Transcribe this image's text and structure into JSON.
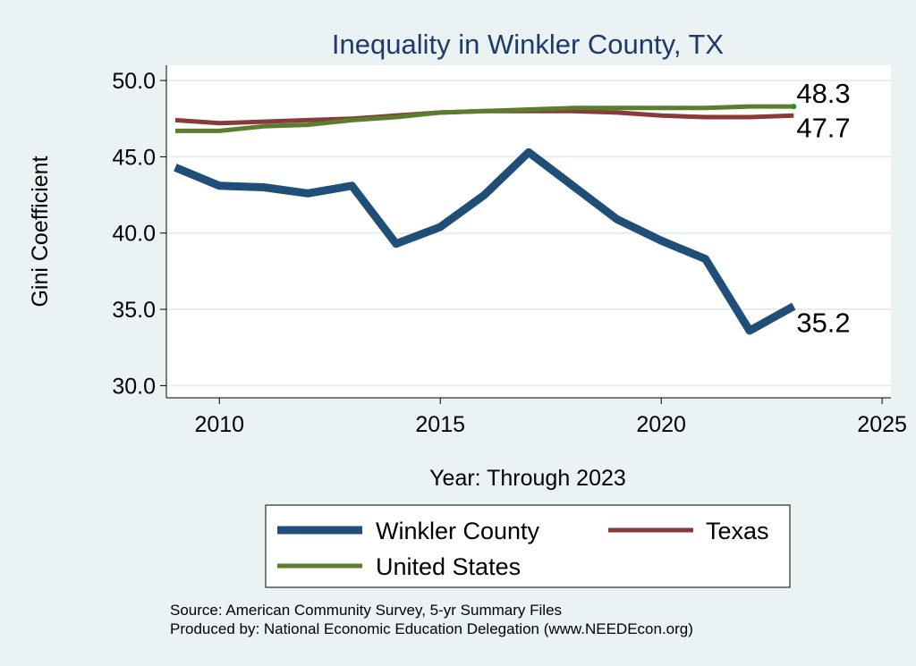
{
  "chart_data": {
    "type": "line",
    "title": "Inequality in Winkler County, TX",
    "xlabel": "Year: Through 2023",
    "ylabel": "Gini Coefficient",
    "xlim": [
      2008.8,
      2025.2
    ],
    "ylim": [
      29.2,
      51.0
    ],
    "x_ticks": [
      2010,
      2015,
      2020,
      2025
    ],
    "x_tick_labels": [
      "2010",
      "2015",
      "2020",
      "2025"
    ],
    "y_ticks": [
      30,
      35,
      40,
      45,
      50
    ],
    "y_tick_labels": [
      "30.0",
      "35.0",
      "40.0",
      "45.0",
      "50.0"
    ],
    "grid": true,
    "legend_position": "bottom",
    "x": [
      2009,
      2010,
      2011,
      2012,
      2013,
      2014,
      2015,
      2016,
      2017,
      2018,
      2019,
      2020,
      2021,
      2022,
      2023
    ],
    "series": [
      {
        "name": "Winkler County",
        "color": "#1f4e79",
        "values": [
          44.3,
          43.1,
          43.0,
          42.6,
          43.1,
          39.3,
          40.4,
          42.5,
          45.3,
          43.1,
          40.9,
          39.5,
          38.3,
          33.6,
          35.2
        ],
        "end_label": "35.2"
      },
      {
        "name": "Texas",
        "color": "#8b3a3a",
        "values": [
          47.4,
          47.2,
          47.3,
          47.4,
          47.5,
          47.7,
          47.9,
          48.0,
          48.0,
          48.0,
          47.9,
          47.7,
          47.6,
          47.6,
          47.7
        ],
        "end_label": "47.7"
      },
      {
        "name": "United States",
        "color": "#5a7d2e",
        "values": [
          46.7,
          46.7,
          47.0,
          47.1,
          47.4,
          47.6,
          47.9,
          48.0,
          48.1,
          48.2,
          48.2,
          48.2,
          48.2,
          48.3,
          48.3
        ],
        "end_label": "48.3"
      }
    ]
  },
  "notes": {
    "source": "Source: American Community Survey, 5-yr Summary Files",
    "produced_by": "Produced by: National Economic Education Delegation (www.NEEDEcon.org)"
  }
}
